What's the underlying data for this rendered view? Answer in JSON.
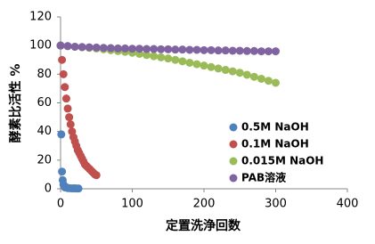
{
  "chart_data": {
    "type": "scatter",
    "x_label": "定置洗浄回数",
    "y_label": "酵素比活性 %",
    "xlim": [
      0,
      400
    ],
    "xticks": [
      0,
      100,
      200,
      300,
      400
    ],
    "ylim": [
      0,
      120
    ],
    "yticks": [
      0,
      20,
      40,
      60,
      80,
      100,
      120
    ],
    "grid": false,
    "legend": "lower right",
    "series": [
      {
        "name": "0.5M NaOH",
        "color": "#4f81bd",
        "x": [
          0,
          1,
          2,
          3,
          4,
          5,
          6,
          8,
          10,
          12,
          15,
          18,
          20,
          22,
          25
        ],
        "values": [
          100,
          38,
          12,
          6,
          3,
          2,
          1,
          1,
          0.5,
          0.5,
          0.3,
          0.3,
          0.3,
          0.2,
          0.2
        ]
      },
      {
        "name": "0.1M NaOH",
        "color": "#c0504d",
        "x": [
          0,
          2,
          4,
          6,
          8,
          10,
          12,
          14,
          16,
          18,
          20,
          22,
          24,
          26,
          28,
          30,
          32,
          34,
          36,
          38,
          40,
          42,
          44,
          46,
          48,
          50
        ],
        "values": [
          100,
          90,
          80,
          71,
          63,
          56,
          50,
          45,
          40,
          36,
          33,
          30,
          27,
          25,
          23,
          21,
          19,
          17,
          16,
          15,
          14,
          13,
          12,
          11,
          10,
          9.5
        ]
      },
      {
        "name": "0.015M NaOH",
        "color": "#9bbb59",
        "x": [
          0,
          10,
          20,
          30,
          40,
          50,
          60,
          70,
          80,
          90,
          100,
          110,
          120,
          130,
          140,
          150,
          160,
          170,
          180,
          190,
          200,
          210,
          220,
          230,
          240,
          250,
          260,
          270,
          280,
          290,
          300
        ],
        "values": [
          100,
          99.6,
          99.2,
          98.8,
          98.4,
          98,
          97.4,
          96.8,
          96.2,
          95.6,
          95,
          94.2,
          93.4,
          92.6,
          91.8,
          91,
          90,
          89,
          88,
          87,
          86,
          85,
          84,
          83,
          82,
          81,
          79.6,
          78.2,
          76.8,
          75.4,
          74
        ]
      },
      {
        "name": "PAB溶液",
        "color": "#8064a2",
        "x": [
          0,
          10,
          20,
          30,
          40,
          50,
          60,
          70,
          80,
          90,
          100,
          110,
          120,
          130,
          140,
          150,
          160,
          170,
          180,
          190,
          200,
          210,
          220,
          230,
          240,
          250,
          260,
          270,
          280,
          290,
          300
        ],
        "values": [
          100,
          99.6,
          99.2,
          99,
          98.8,
          98.6,
          98.4,
          98.2,
          98,
          98,
          97.8,
          97.8,
          97.6,
          97.6,
          97.4,
          97.4,
          97.2,
          97.2,
          97,
          97,
          96.8,
          96.8,
          96.6,
          96.6,
          96.4,
          96.4,
          96.2,
          96.2,
          96,
          96,
          96
        ]
      }
    ]
  }
}
